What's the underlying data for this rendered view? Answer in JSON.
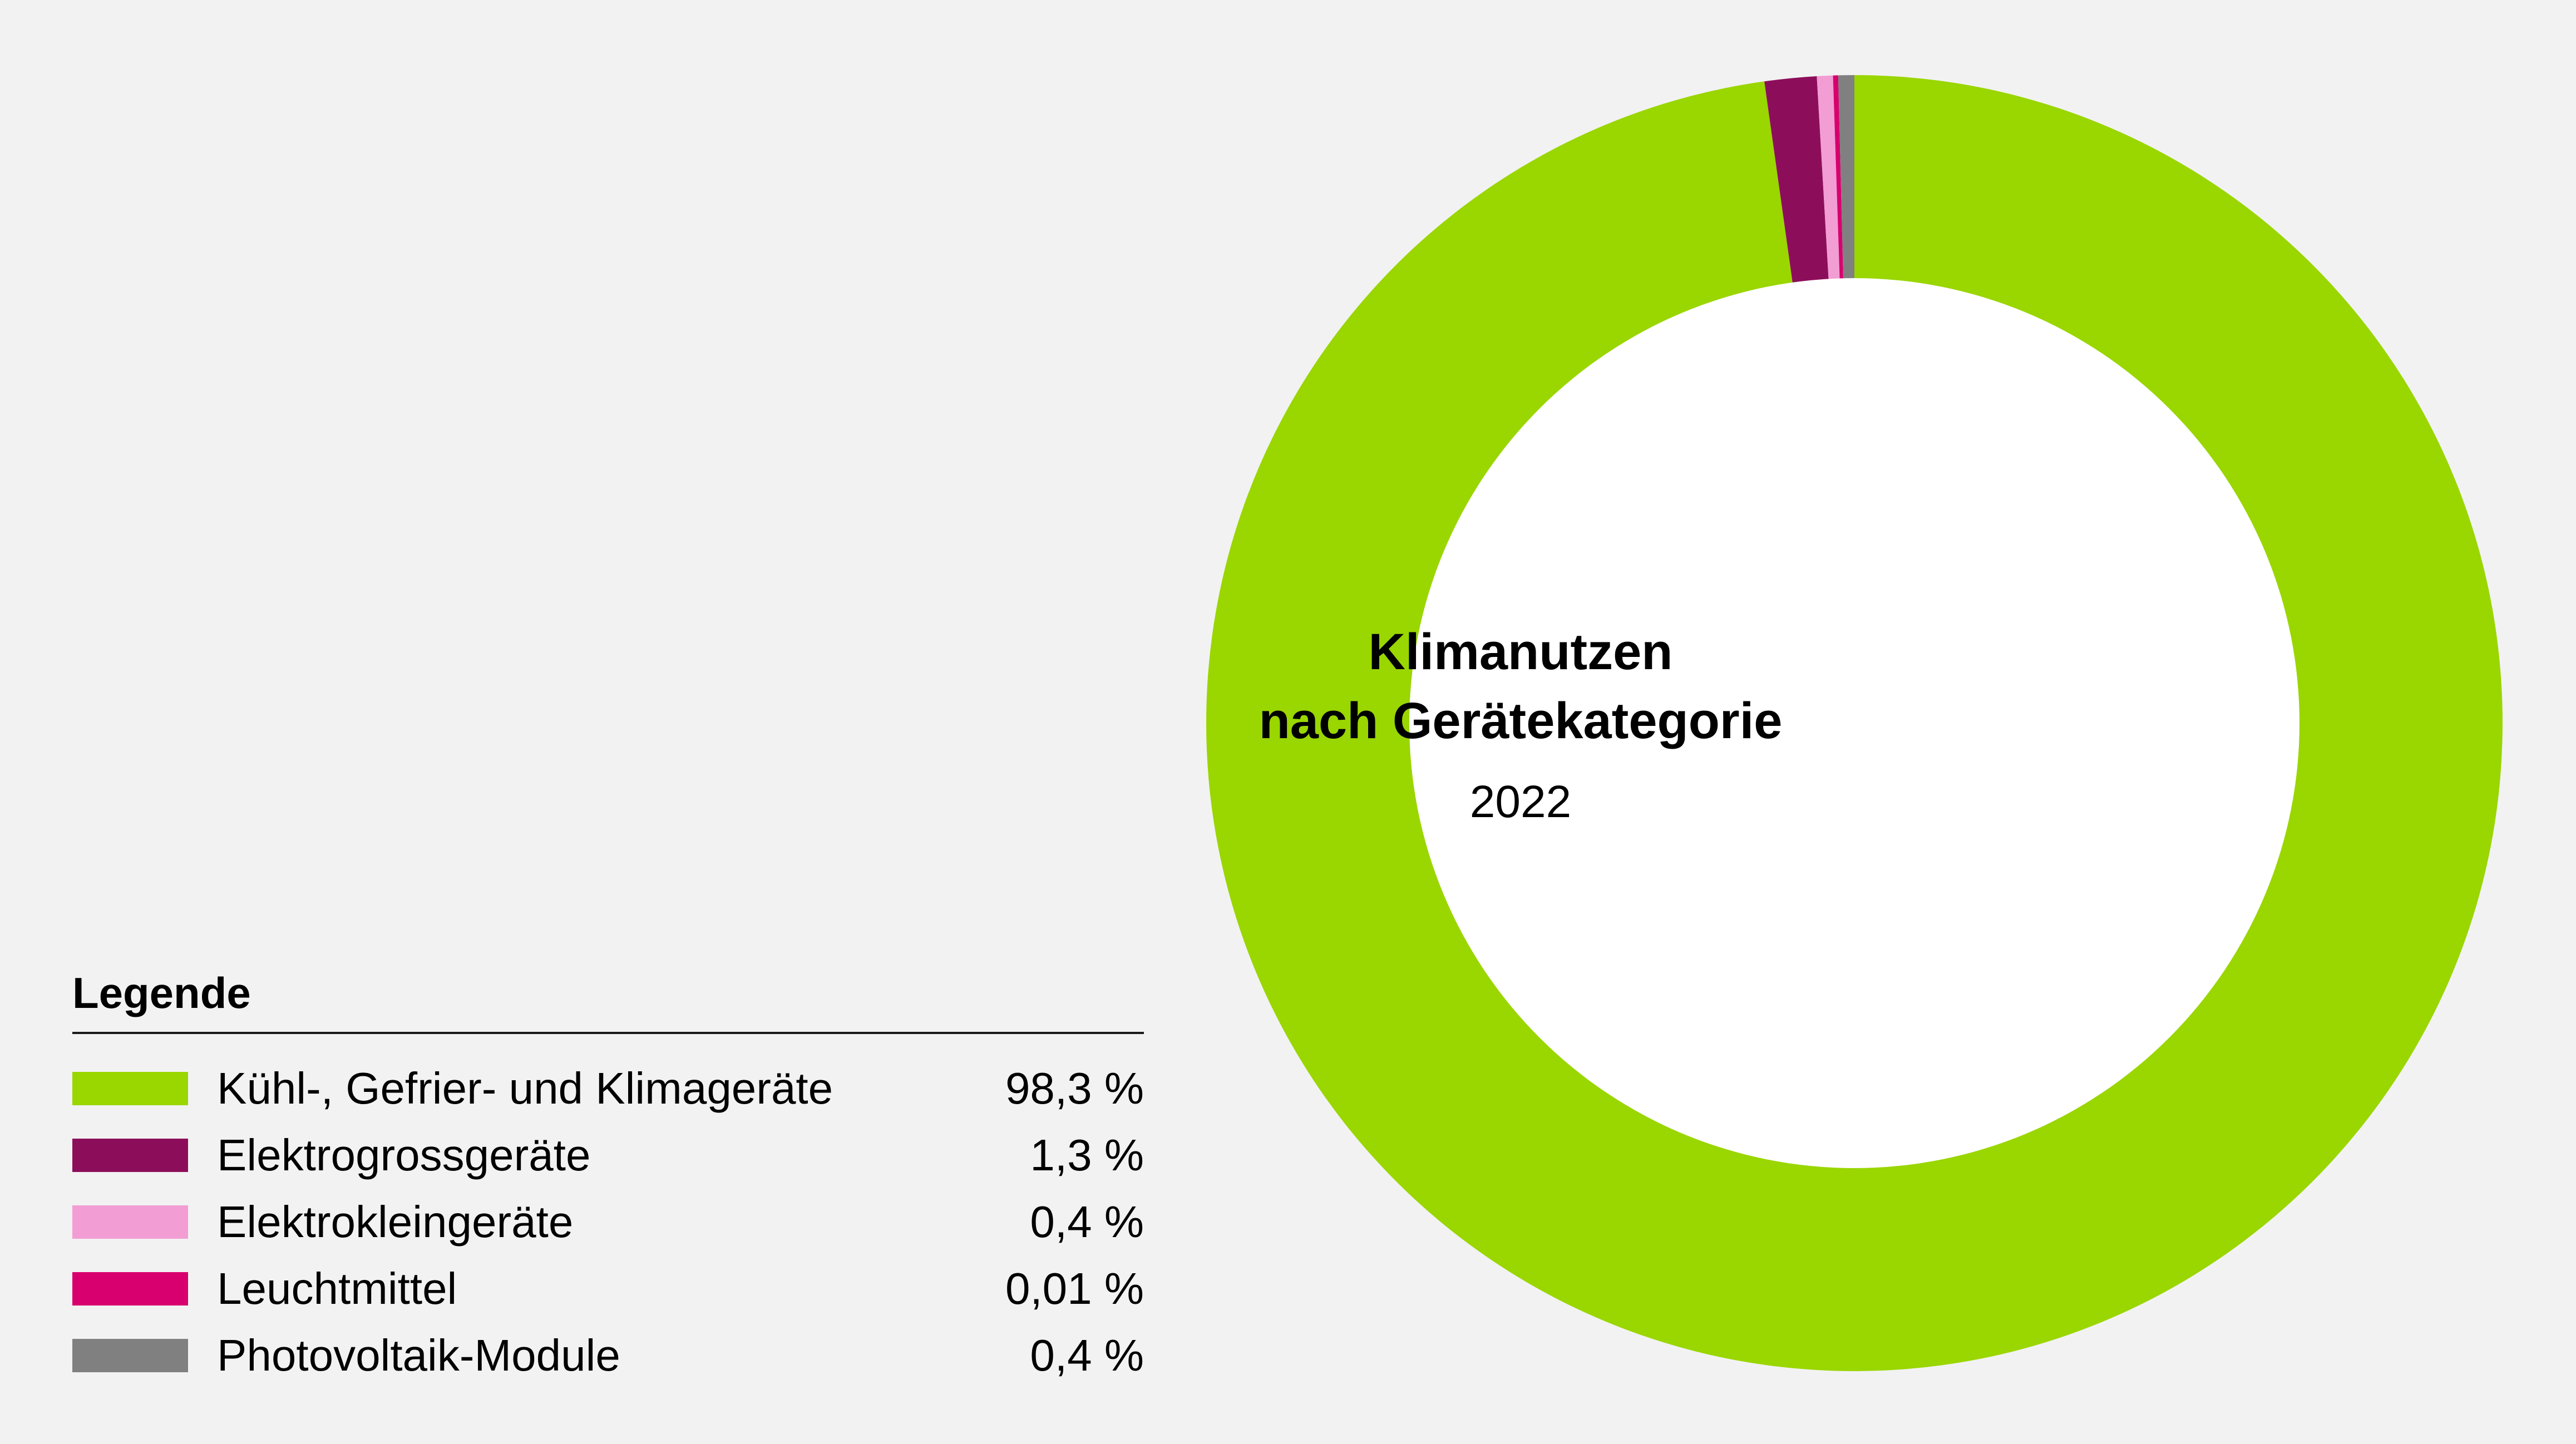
{
  "chart_data": {
    "type": "pie",
    "donut": true,
    "title": "Klimanutzen",
    "title_line2": "nach Gerätekategorie",
    "subtitle": "2022",
    "legend_title": "Legende",
    "legend_placement": "bottom-left",
    "slices": [
      {
        "label": "Kühl-, Gefrier- und Klimageräte",
        "value": 98.3,
        "value_label": "98,3 %",
        "color": "#9ad600"
      },
      {
        "label": "Elektrogrossgeräte",
        "value": 1.3,
        "value_label": "1,3 %",
        "color": "#8c0e5a"
      },
      {
        "label": "Elektrokleingeräte",
        "value": 0.4,
        "value_label": "0,4 %",
        "color": "#f29dd3"
      },
      {
        "label": "Leuchtmittel",
        "value": 0.01,
        "value_label": "0,01 %",
        "color": "#d8006e"
      },
      {
        "label": "Photovoltaik-Module",
        "value": 0.4,
        "value_label": "0,4 %",
        "color": "#808080"
      }
    ]
  }
}
